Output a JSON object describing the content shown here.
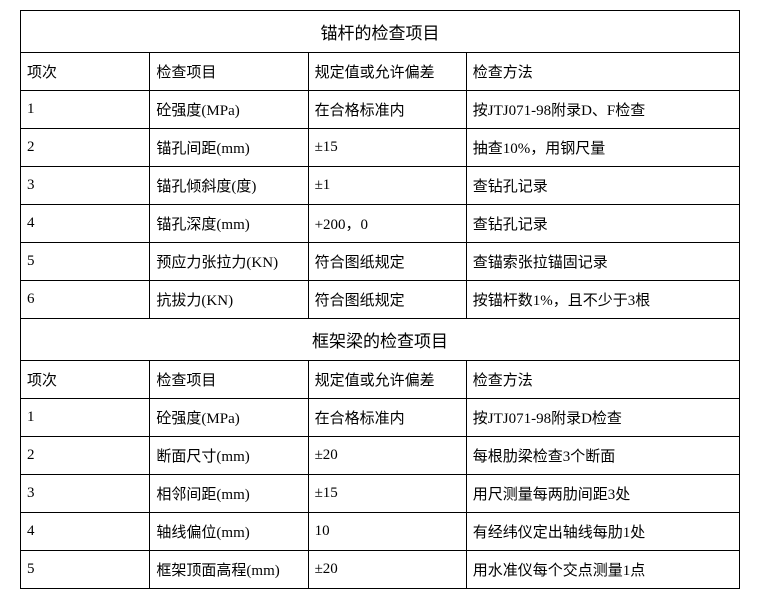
{
  "section1": {
    "title": "锚杆的检查项目",
    "headers": [
      "项次",
      "检查项目",
      "规定值或允许偏差",
      "检查方法"
    ],
    "rows": [
      [
        "1",
        "砼强度(MPa)",
        "在合格标准内",
        "按JTJ071-98附录D、F检查"
      ],
      [
        "2",
        "锚孔间距(mm)",
        "±15",
        "抽查10%，用钢尺量"
      ],
      [
        "3",
        "锚孔倾斜度(度)",
        "±1",
        "查钻孔记录"
      ],
      [
        "4",
        "锚孔深度(mm)",
        "+200，0",
        "查钻孔记录"
      ],
      [
        "5",
        "预应力张拉力(KN)",
        "符合图纸规定",
        "查锚索张拉锚固记录"
      ],
      [
        "6",
        "抗拔力(KN)",
        "符合图纸规定",
        "按锚杆数1%，且不少于3根"
      ]
    ]
  },
  "section2": {
    "title": "框架梁的检查项目",
    "headers": [
      "项次",
      "检查项目",
      "规定值或允许偏差",
      "检查方法"
    ],
    "rows": [
      [
        "1",
        "砼强度(MPa)",
        "在合格标准内",
        "按JTJ071-98附录D检查"
      ],
      [
        "2",
        "断面尺寸(mm)",
        "±20",
        "每根肋梁检查3个断面"
      ],
      [
        "3",
        "相邻间距(mm)",
        "±15",
        "用尺测量每两肋间距3处"
      ],
      [
        "4",
        "轴线偏位(mm)",
        "10",
        "有经纬仪定出轴线每肋1处"
      ],
      [
        "5",
        "框架顶面高程(mm)",
        "±20",
        "用水准仪每个交点测量1点"
      ]
    ]
  }
}
